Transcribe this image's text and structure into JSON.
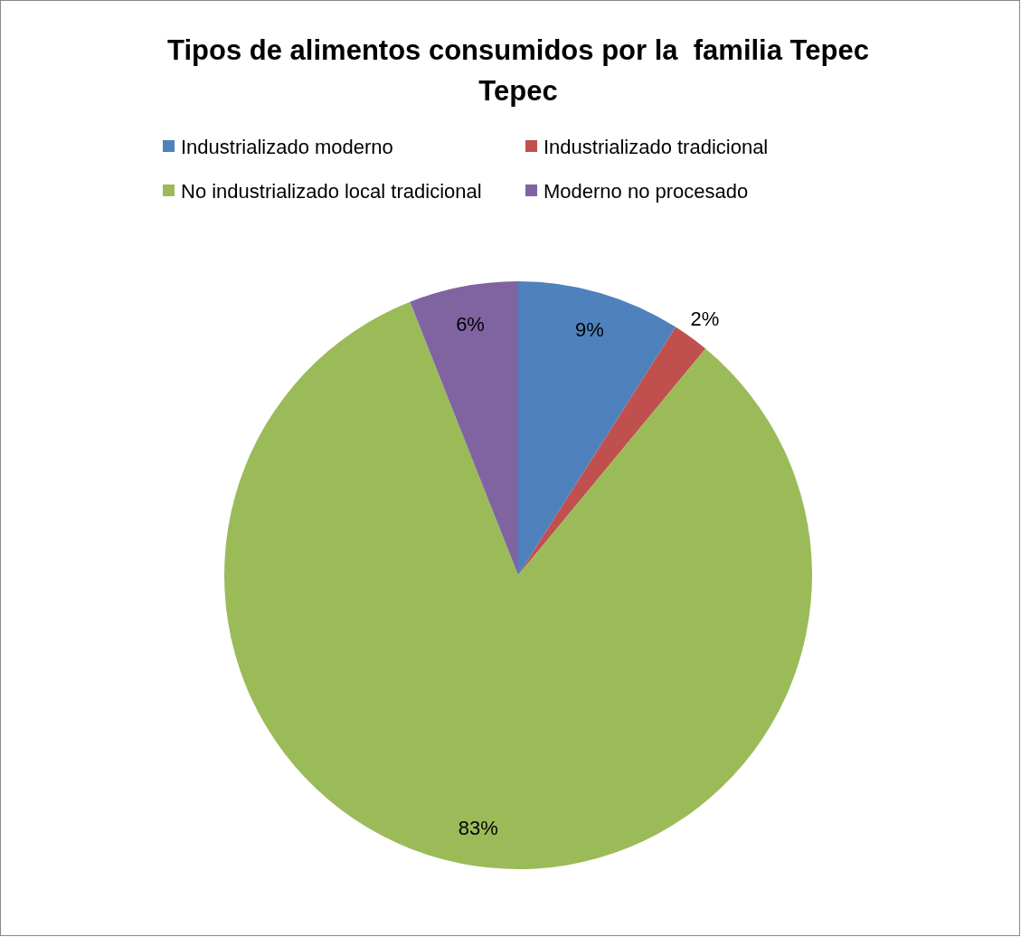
{
  "chart_data": {
    "type": "pie",
    "title": "Tipos de alimentos consumidos por la  familia Tepec Tepec",
    "categories": [
      "Industrializado moderno",
      "Industrializado tradicional",
      "No industrializado local tradicional",
      "Moderno no procesado"
    ],
    "values": [
      9,
      2,
      83,
      6
    ],
    "colors": [
      "#4f81bd",
      "#c0504d",
      "#9bbb59",
      "#8064a2"
    ],
    "value_labels": [
      "9%",
      "2%",
      "83%",
      "6%"
    ],
    "legend": "top"
  }
}
